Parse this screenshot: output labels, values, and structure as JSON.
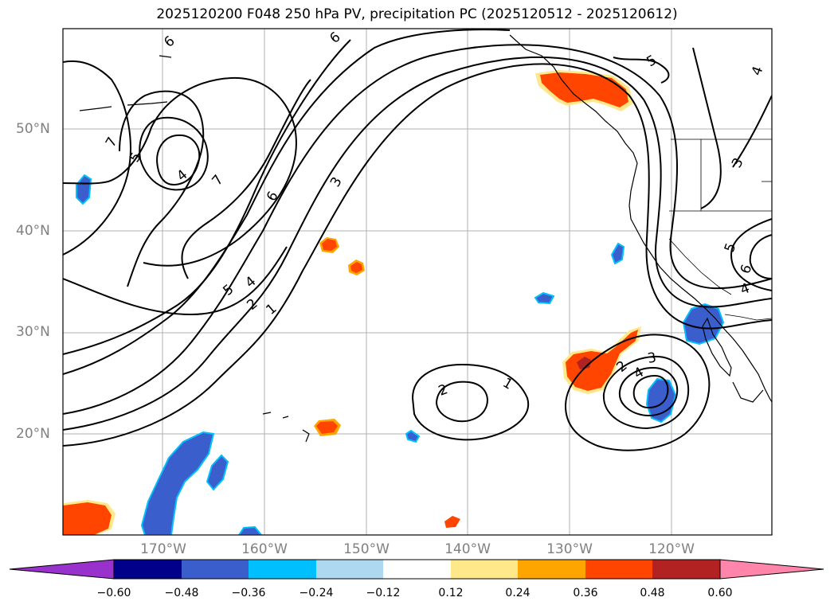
{
  "title": "2025120200 F048 250 hPa PV, precipitation PC (2025120512 - 2025120612)",
  "lat_labels": [
    "50°N",
    "40°N",
    "30°N",
    "20°N"
  ],
  "lon_labels": [
    "170°W",
    "160°W",
    "150°W",
    "140°W",
    "130°W",
    "120°W"
  ],
  "contour_labels": [
    "6",
    "6",
    "5",
    "5",
    "4",
    "4",
    "7",
    "7",
    "6",
    "5",
    "4",
    "3",
    "2",
    "1",
    "2",
    "1",
    "2",
    "3",
    "4",
    "3",
    "5",
    "6",
    "4"
  ],
  "colorbar": {
    "ticks": [
      "−0.60",
      "−0.48",
      "−0.36",
      "−0.24",
      "−0.12",
      "0.12",
      "0.24",
      "0.36",
      "0.48",
      "0.60"
    ],
    "colors": [
      "#9932cc",
      "#00008b",
      "#3a5fcd",
      "#00bfff",
      "#add8f0",
      "#ffffff",
      "#ffe88a",
      "#ffa500",
      "#ff4500",
      "#b22222",
      "#ff85aa"
    ]
  },
  "colors": {
    "pos_strong": "#ff4500",
    "pos_mid": "#ffa500",
    "pos_edge": "#ffe88a",
    "pos_max": "#b22222",
    "neg_strong": "#3a5fcd",
    "neg_edge": "#00bfff",
    "contour": "#000000",
    "grid": "#b0b0b0"
  }
}
